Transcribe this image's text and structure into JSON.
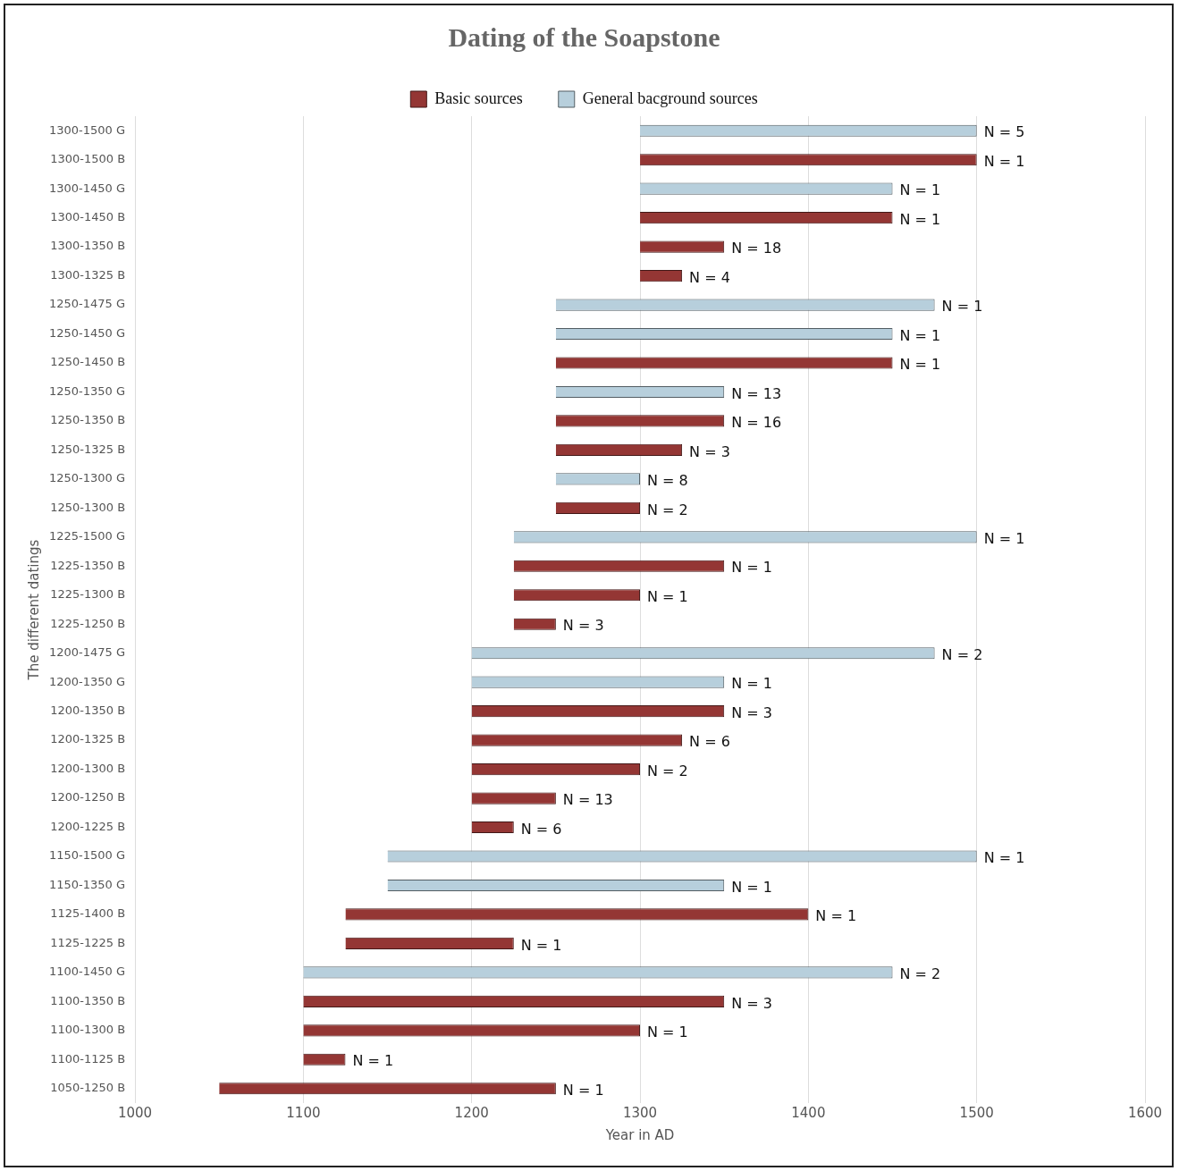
{
  "chart_data": {
    "type": "bar",
    "orientation": "horizontal",
    "title": "Dating of the Soapstone",
    "xlabel": "Year in AD",
    "ylabel": "The different datings",
    "categories": [
      "1300-1500 G",
      "1300-1500 B",
      "1300-1450 G",
      "1300-1450 B",
      "1300-1350 B",
      "1300-1325 B",
      "1250-1475 G",
      "1250-1450 G",
      "1250-1450 B",
      "1250-1350 G",
      "1250-1350 B",
      "1250-1325 B",
      "1250-1300 G",
      "1250-1300 B",
      "1225-1500 G",
      "1225-1350 B",
      "1225-1300 B",
      "1225-1250 B",
      "1200-1475 G",
      "1200-1350 G",
      "1200-1350 B",
      "1200-1325 B",
      "1200-1300 B",
      "1200-1250 B",
      "1200-1225 B",
      "1150-1500 G",
      "1150-1350 G",
      "1125-1400 B",
      "1125-1225 B",
      "1100-1450 G",
      "1100-1350 B",
      "1100-1300 B",
      "1100-1125 B",
      "1050-1250 B"
    ],
    "series": [
      {
        "name": "Basic sources",
        "color": "#943634",
        "base": [
          null,
          1300,
          null,
          1300,
          1300,
          1300,
          null,
          null,
          1250,
          null,
          1250,
          1250,
          null,
          1250,
          null,
          1225,
          1225,
          1225,
          null,
          null,
          1200,
          1200,
          1200,
          1200,
          1200,
          null,
          null,
          1125,
          1125,
          null,
          1100,
          1100,
          1100,
          1050
        ],
        "values": [
          null,
          200,
          null,
          150,
          50,
          25,
          null,
          null,
          200,
          null,
          100,
          75,
          null,
          50,
          null,
          125,
          75,
          25,
          null,
          null,
          150,
          125,
          100,
          50,
          25,
          null,
          null,
          275,
          100,
          null,
          250,
          200,
          25,
          200
        ]
      },
      {
        "name": "General bacground sources",
        "color": "#b7cfdc",
        "base": [
          1300,
          null,
          1300,
          null,
          null,
          null,
          1250,
          1250,
          null,
          1250,
          null,
          null,
          1250,
          null,
          1225,
          null,
          null,
          null,
          1200,
          1200,
          null,
          null,
          null,
          null,
          null,
          1150,
          1150,
          null,
          null,
          1100,
          null,
          null,
          null,
          null
        ],
        "values": [
          200,
          null,
          150,
          null,
          null,
          null,
          225,
          200,
          null,
          100,
          null,
          null,
          50,
          null,
          275,
          null,
          null,
          null,
          275,
          150,
          null,
          null,
          null,
          null,
          null,
          350,
          200,
          null,
          null,
          350,
          null,
          null,
          null,
          null
        ]
      }
    ],
    "annotations": [
      {
        "text": "N = 5",
        "x": 1500,
        "y": "1300-1500 G"
      },
      {
        "text": "N = 1",
        "x": 1500,
        "y": "1300-1500 B"
      },
      {
        "text": "N = 1",
        "x": 1450,
        "y": "1300-1450 G"
      },
      {
        "text": "N = 1",
        "x": 1450,
        "y": "1300-1450 B"
      },
      {
        "text": "N = 18",
        "x": 1350,
        "y": "1300-1350 B"
      },
      {
        "text": "N = 4",
        "x": 1325,
        "y": "1300-1325 B"
      },
      {
        "text": "N = 1",
        "x": 1475,
        "y": "1250-1475 G"
      },
      {
        "text": "N = 1",
        "x": 1450,
        "y": "1250-1450 G"
      },
      {
        "text": "N = 1",
        "x": 1450,
        "y": "1250-1450 B"
      },
      {
        "text": "N = 13",
        "x": 1350,
        "y": "1250-1350 G"
      },
      {
        "text": "N = 16",
        "x": 1350,
        "y": "1250-1350 B"
      },
      {
        "text": "N = 3",
        "x": 1325,
        "y": "1250-1325 B"
      },
      {
        "text": "N = 8",
        "x": 1300,
        "y": "1250-1300 G"
      },
      {
        "text": "N = 2",
        "x": 1300,
        "y": "1250-1300 B"
      },
      {
        "text": "N = 1",
        "x": 1500,
        "y": "1225-1500 G"
      },
      {
        "text": "N = 1",
        "x": 1350,
        "y": "1225-1350 B"
      },
      {
        "text": "N = 1",
        "x": 1300,
        "y": "1225-1300 B"
      },
      {
        "text": "N = 3",
        "x": 1250,
        "y": "1225-1250 B"
      },
      {
        "text": "N = 2",
        "x": 1475,
        "y": "1200-1475 G"
      },
      {
        "text": "N = 1",
        "x": 1350,
        "y": "1200-1350 G"
      },
      {
        "text": "N = 3",
        "x": 1350,
        "y": "1200-1350 B"
      },
      {
        "text": "N = 6",
        "x": 1325,
        "y": "1200-1325 B"
      },
      {
        "text": "N = 2",
        "x": 1300,
        "y": "1200-1300 B"
      },
      {
        "text": "N = 13",
        "x": 1250,
        "y": "1200-1250 B"
      },
      {
        "text": "N = 6",
        "x": 1225,
        "y": "1200-1225 B"
      },
      {
        "text": "N = 1",
        "x": 1500,
        "y": "1150-1500 G"
      },
      {
        "text": "N = 1",
        "x": 1350,
        "y": "1150-1350 G"
      },
      {
        "text": "N = 1",
        "x": 1400,
        "y": "1125-1400 B"
      },
      {
        "text": "N = 1",
        "x": 1225,
        "y": "1125-1225 B"
      },
      {
        "text": "N = 2",
        "x": 1450,
        "y": "1100-1450 G"
      },
      {
        "text": "N = 3",
        "x": 1350,
        "y": "1100-1350 B"
      },
      {
        "text": "N = 1",
        "x": 1300,
        "y": "1100-1300 B"
      },
      {
        "text": "N = 1",
        "x": 1125,
        "y": "1100-1125 B"
      },
      {
        "text": "N = 1",
        "x": 1250,
        "y": "1050-1250 B"
      }
    ],
    "xlim": [
      1000,
      1600
    ],
    "xticks": [
      1000,
      1100,
      1200,
      1300,
      1400,
      1500,
      1600
    ],
    "grid": "x",
    "legend": "top"
  }
}
